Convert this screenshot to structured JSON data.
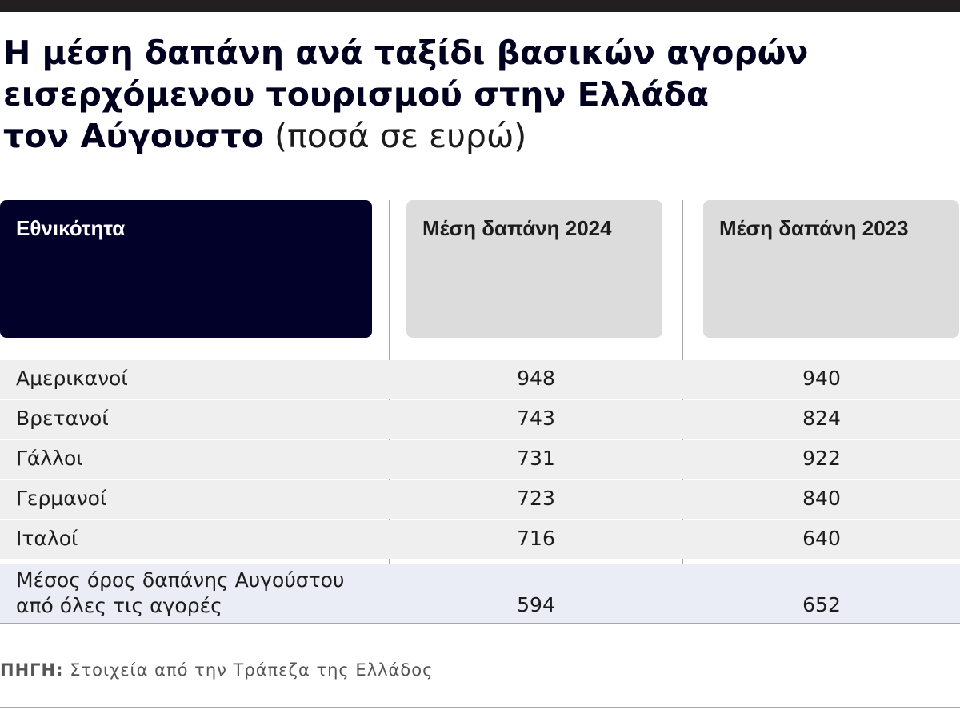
{
  "title": {
    "line1": "Η μέση δαπάνη ανά ταξίδι βασικών αγορών",
    "line2": "εισερχόμενου τουρισμού στην Ελλάδα",
    "line3": "τον Αύγουστο",
    "unit": "(ποσά σε ευρώ)"
  },
  "chart_data": {
    "type": "table",
    "columns": [
      "Εθνικότητα",
      "Μέση δαπάνη 2024",
      "Μέση δαπάνη 2023"
    ],
    "rows": [
      {
        "label": "Αμερικανοί",
        "v2024": "948",
        "v2023": "940"
      },
      {
        "label": "Βρετανοί",
        "v2024": "743",
        "v2023": "824"
      },
      {
        "label": "Γάλλοι",
        "v2024": "731",
        "v2023": "922"
      },
      {
        "label": "Γερμανοί",
        "v2024": "723",
        "v2023": "840"
      },
      {
        "label": "Ιταλοί",
        "v2024": "716",
        "v2023": "640"
      },
      {
        "label": "Μέσος όρος δαπάνης Αυγούστου από όλες τις αγορές",
        "v2024": "594",
        "v2023": "652"
      }
    ]
  },
  "source": {
    "label": "ΠΗΓΗ:",
    "text": "Στοιχεία από την Τράπεζα της Ελλάδος"
  },
  "colors": {
    "header_dark": "#01012a",
    "header_gray": "#dcdcdc",
    "row_bg": "#efefef",
    "avg_row_bg": "#ebedf6"
  }
}
